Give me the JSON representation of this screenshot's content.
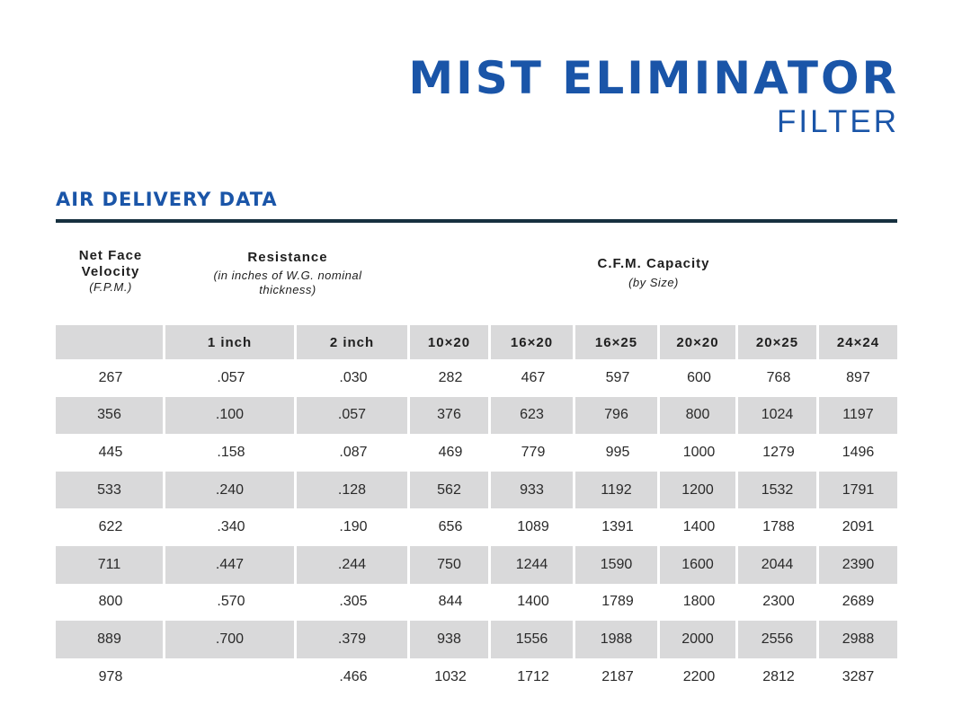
{
  "title": "MIST ELIMINATOR",
  "subtitle": "FILTER",
  "section_title": "AIR DELIVERY DATA",
  "header": {
    "velocity": {
      "main_line1": "Net Face",
      "main_line2": "Velocity",
      "note": "(F.P.M.)"
    },
    "resistance": {
      "main": "Resistance",
      "note_line1": "(in inches of W.G. nominal",
      "note_line2": "thickness)"
    },
    "capacity": {
      "main": "C.F.M. Capacity",
      "note": "(by Size)"
    }
  },
  "columns": [
    "",
    "1 inch",
    "2 inch",
    "10×20",
    "16×20",
    "16×25",
    "20×20",
    "20×25",
    "24×24"
  ],
  "rows": [
    [
      "267",
      ".057",
      ".030",
      "282",
      "467",
      "597",
      "600",
      "768",
      "897"
    ],
    [
      "356",
      ".100",
      ".057",
      "376",
      "623",
      "796",
      "800",
      "1024",
      "1197"
    ],
    [
      "445",
      ".158",
      ".087",
      "469",
      "779",
      "995",
      "1000",
      "1279",
      "1496"
    ],
    [
      "533",
      ".240",
      ".128",
      "562",
      "933",
      "1192",
      "1200",
      "1532",
      "1791"
    ],
    [
      "622",
      ".340",
      ".190",
      "656",
      "1089",
      "1391",
      "1400",
      "1788",
      "2091"
    ],
    [
      "711",
      ".447",
      ".244",
      "750",
      "1244",
      "1590",
      "1600",
      "2044",
      "2390"
    ],
    [
      "800",
      ".570",
      ".305",
      "844",
      "1400",
      "1789",
      "1800",
      "2300",
      "2689"
    ],
    [
      "889",
      ".700",
      ".379",
      "938",
      "1556",
      "1988",
      "2000",
      "2556",
      "2988"
    ],
    [
      "978",
      "",
      ".466",
      "1032",
      "1712",
      "2187",
      "2200",
      "2812",
      "3287"
    ]
  ],
  "colors": {
    "brand_blue": "#1a55a8",
    "rule": "#16303f",
    "row_shade": "#d9d9da"
  }
}
